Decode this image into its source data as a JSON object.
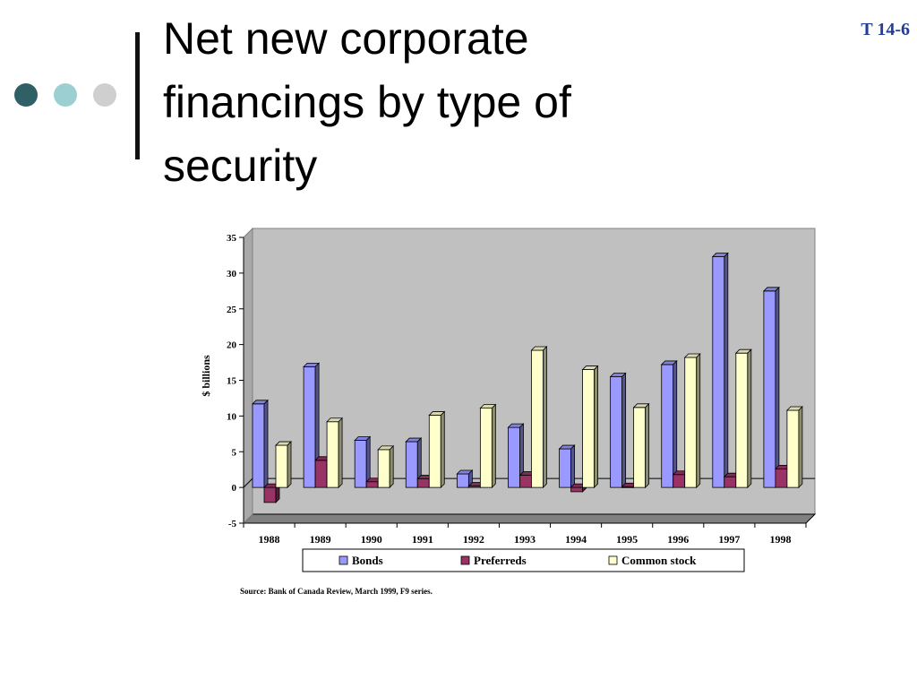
{
  "slide": {
    "title": "Net new corporate financings by type of security",
    "slide_number": "T 14-6",
    "source": "Source: Bank of Canada Review, March 1999, F9 series."
  },
  "colors": {
    "bonds": "#9999ff",
    "preferreds": "#993366",
    "common": "#ffffcc",
    "wall": "#c0c0c0",
    "floor": "#808080"
  },
  "chart_data": {
    "type": "bar",
    "title": "",
    "xlabel": "",
    "ylabel": "$ billions",
    "ylim": [
      -5,
      35
    ],
    "yticks": [
      "-5",
      "0",
      "5",
      "10",
      "15",
      "20",
      "25",
      "30",
      "35"
    ],
    "grid": false,
    "legend_position": "bottom",
    "categories": [
      "1988",
      "1989",
      "1990",
      "1991",
      "1992",
      "1993",
      "1994",
      "1995",
      "1996",
      "1997",
      "1998"
    ],
    "series": [
      {
        "name": "Bonds",
        "values": [
          11.7,
          16.9,
          6.6,
          6.4,
          1.9,
          8.4,
          5.4,
          15.5,
          17.2,
          32.3,
          27.5
        ]
      },
      {
        "name": "Preferreds",
        "values": [
          -2.1,
          3.8,
          0.8,
          1.2,
          0.2,
          1.7,
          -0.6,
          0.1,
          1.8,
          1.5,
          2.6
        ]
      },
      {
        "name": "Common stock",
        "values": [
          5.9,
          9.2,
          5.3,
          10.1,
          11.1,
          19.2,
          16.5,
          11.2,
          18.2,
          18.8,
          10.8
        ]
      }
    ]
  }
}
